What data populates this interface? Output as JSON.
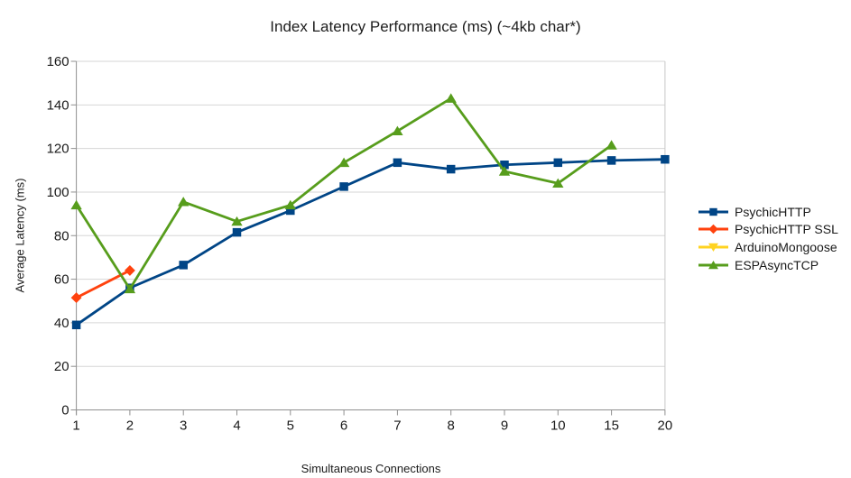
{
  "chart_data": {
    "type": "line",
    "title": "Index Latency Performance (ms) (~4kb char*)",
    "xlabel": "Simultaneous Connections",
    "ylabel": "Average Latency (ms)",
    "categories": [
      "1",
      "2",
      "3",
      "4",
      "5",
      "6",
      "7",
      "8",
      "9",
      "10",
      "15",
      "20"
    ],
    "ylim": [
      0,
      160
    ],
    "yticks": [
      0,
      20,
      40,
      60,
      80,
      100,
      120,
      140,
      160
    ],
    "grid": "horizontal",
    "legend_position": "right",
    "series": [
      {
        "name": "PsychicHTTP",
        "color": "#004586",
        "marker": "square",
        "values": [
          39,
          56,
          66.5,
          81.5,
          91.5,
          102.5,
          113.5,
          110.5,
          112.5,
          113.5,
          114.5,
          115
        ]
      },
      {
        "name": "PsychicHTTP SSL",
        "color": "#ff420e",
        "marker": "diamond",
        "values": [
          51.5,
          64,
          null,
          null,
          null,
          null,
          null,
          null,
          null,
          null,
          null,
          null
        ]
      },
      {
        "name": "ArduinoMongoose",
        "color": "#ffd320",
        "marker": "triangle-down",
        "values": [
          null,
          null,
          null,
          null,
          null,
          null,
          null,
          null,
          null,
          null,
          null,
          null
        ]
      },
      {
        "name": "ESPAsyncTCP",
        "color": "#579d1c",
        "marker": "triangle-up",
        "values": [
          94,
          55.5,
          95.5,
          86.5,
          94,
          113.5,
          128,
          143,
          109.5,
          104,
          121.5,
          null
        ]
      }
    ]
  },
  "colors": {
    "background": "#ffffff",
    "text": "#1a1a1a",
    "axis": "#8f8f8f",
    "grid": "#d6d6d6",
    "plot_right_border": "#c8c8c8"
  }
}
